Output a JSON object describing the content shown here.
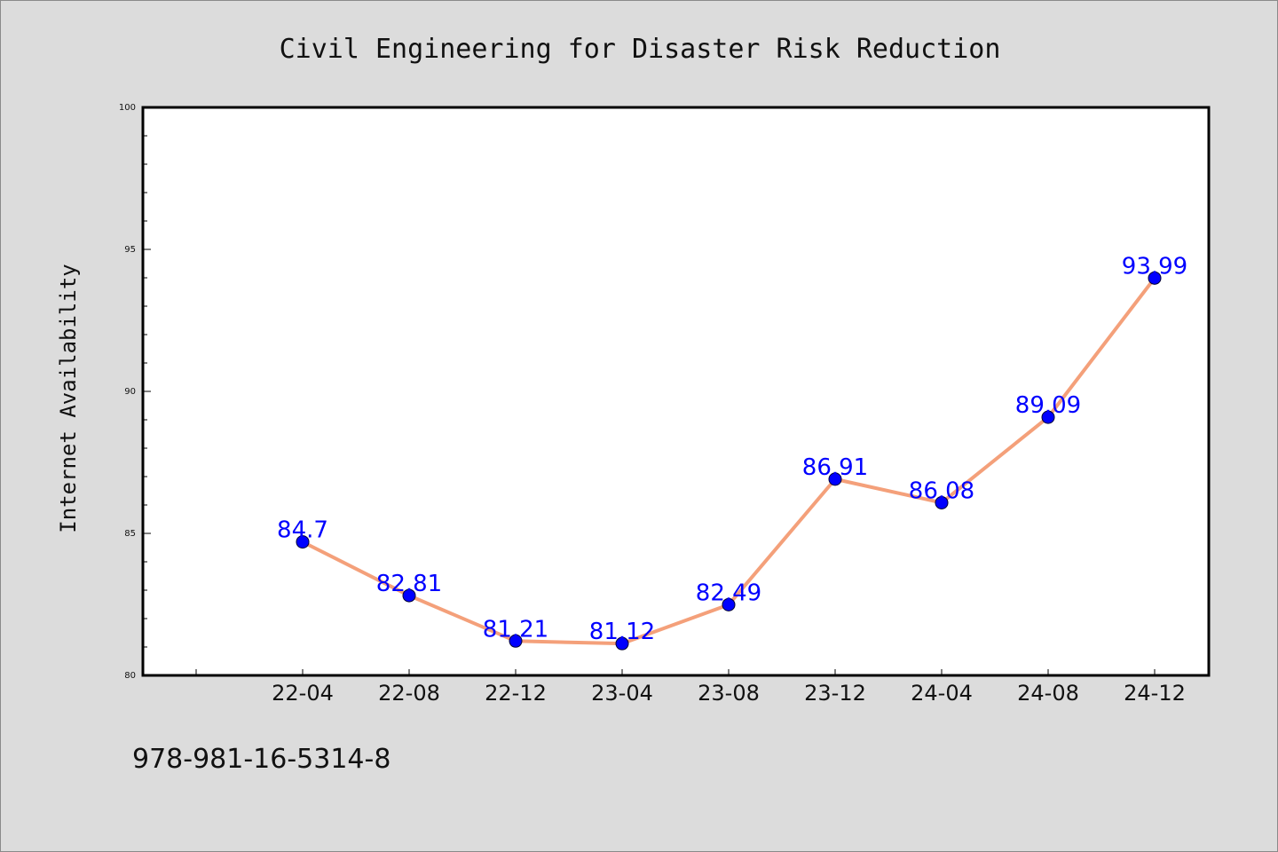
{
  "chart_data": {
    "type": "line",
    "title": "Civil Engineering for Disaster Risk Reduction",
    "xlabel": "",
    "ylabel": "Internet Availability",
    "categories": [
      "22-04",
      "22-08",
      "22-12",
      "23-04",
      "23-08",
      "23-12",
      "24-04",
      "24-08",
      "24-12"
    ],
    "values": [
      84.7,
      82.81,
      81.21,
      81.12,
      82.49,
      86.91,
      86.08,
      89.09,
      93.99
    ],
    "data_labels": [
      "84.7",
      "82.81",
      "81.21",
      "81.12",
      "82.49",
      "86.91",
      "86.08",
      "89.09",
      "93.99"
    ],
    "ylim": [
      80,
      100
    ],
    "yticks": [
      80,
      85,
      90,
      95,
      100
    ],
    "ytick_labels": [
      "80",
      "85",
      "90",
      "95",
      "100"
    ],
    "grid": false,
    "legend": "none",
    "colors": {
      "line": "#f4a07a",
      "marker": "#0000ff",
      "data_label": "#0000ff",
      "background": "#dcdcdc",
      "plot_background": "#ffffff"
    }
  },
  "footer": {
    "isbn": "978-981-16-5314-8"
  }
}
